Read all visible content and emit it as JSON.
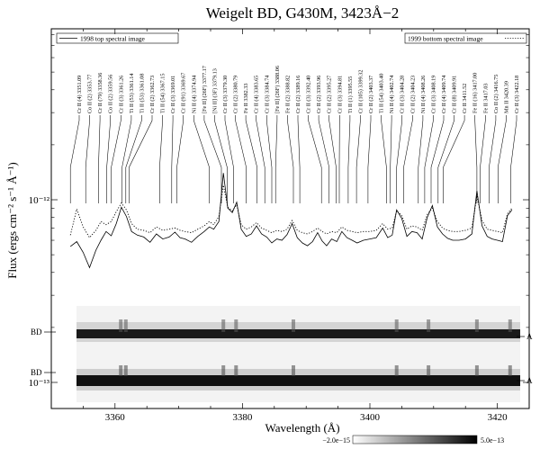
{
  "chart_data": {
    "type": "line",
    "title": "Weigelt BD, G430M, 3423Å−2",
    "xlabel": "Wavelength (Å)",
    "ylabel": "Flux (ergs cm⁻² s⁻¹ Å⁻¹)",
    "x_range": [
      3350,
      3425
    ],
    "y_scale": "log",
    "x_ticks": [
      "3360",
      "3380",
      "3400",
      "3420"
    ],
    "y_ticks": [
      "10⁻¹²",
      "10⁻¹³"
    ],
    "legend": {
      "left": "1998 top spectral image",
      "right": "1999 bottom spectral image"
    },
    "colorbar": {
      "min_label": "−2.0e−15",
      "max_label": "5.0e−13"
    },
    "image_labels": {
      "left": "BD",
      "right": "A"
    },
    "line_ids": [
      {
        "label": "Cr II (4) 3351.09",
        "x": 3353.0
      },
      {
        "label": "Co II (2) 3353.77",
        "x": 3355.4
      },
      {
        "label": "Cr II (79) 3358.36",
        "x": 3357.4
      },
      {
        "label": "Co II (2) 3359.56",
        "x": 3358.7
      },
      {
        "label": "Cr II (3) 3361.26",
        "x": 3359.4
      },
      {
        "label": "Ti II (53) 3361.14",
        "x": 3361.1
      },
      {
        "label": "Ti II (53) 3361.08",
        "x": 3361.7
      },
      {
        "label": "Cr II (2) 3362.73",
        "x": 3362.2
      },
      {
        "label": "Ti II (54) 3367.15",
        "x": 3367.0
      },
      {
        "label": "Cr II (3) 3369.01",
        "x": 3368.9
      },
      {
        "label": "Cr II (91) 3369.67",
        "x": 3369.7
      },
      {
        "label": "Ni II (4) 3374.94",
        "x": 3374.8
      },
      {
        "label": "[Fe II] (26F) 3377.17",
        "x": 3376.7
      },
      {
        "label": "[Ni II] (3F) 3379.13",
        "x": 3377.6
      },
      {
        "label": "Cr II (3) 3379.30",
        "x": 3378.6
      },
      {
        "label": "Cr II (2) 3380.79",
        "x": 3380.6
      },
      {
        "label": "Fe II 3382.33",
        "x": 3382.3
      },
      {
        "label": "Cr II (4) 3383.65",
        "x": 3383.5
      },
      {
        "label": "Cr II (3) 3384.74",
        "x": 3384.6
      },
      {
        "label": "[Fe II] (26F) 3388.06",
        "x": 3385.2
      },
      {
        "label": "Fe II (2) 3388.82",
        "x": 3388.0
      },
      {
        "label": "Cr II (2) 3389.16",
        "x": 3389.0
      },
      {
        "label": "Cr II (3) 3392.40",
        "x": 3392.4
      },
      {
        "label": "Cr II (2) 3393.96",
        "x": 3393.6
      },
      {
        "label": "Cr II (2) 3395.27",
        "x": 3394.7
      },
      {
        "label": "Cr II (3) 3394.81",
        "x": 3395.2
      },
      {
        "label": "Ti II (1) 3395.55",
        "x": 3396.6
      },
      {
        "label": "Cr II (105) 3399.32",
        "x": 3397.9
      },
      {
        "label": "Cr II (2) 3403.37",
        "x": 3399.7
      },
      {
        "label": "Ti II (54) 3403.40",
        "x": 3402.6
      },
      {
        "label": "Ni II (4) 3402.74",
        "x": 3403.2
      },
      {
        "label": "Cr II (3) 3404.28",
        "x": 3404.2
      },
      {
        "label": "Cr II (2) 3404.23",
        "x": 3405.3
      },
      {
        "label": "Ni II (4) 3408.26",
        "x": 3407.6
      },
      {
        "label": "Cr II (3) 3408.19",
        "x": 3408.6
      },
      {
        "label": "Cr II (4) 3409.74",
        "x": 3409.6
      },
      {
        "label": "Cr II (8) 3409.91",
        "x": 3410.7
      },
      {
        "label": "Cr II 3411.52",
        "x": 3411.5
      },
      {
        "label": "Fe II (16) 3417.00",
        "x": 3416.8
      },
      {
        "label": "Fe II 3417.03",
        "x": 3417.3
      },
      {
        "label": "Co II (2) 3416.75",
        "x": 3418.7
      },
      {
        "label": "Mn II 3420.39",
        "x": 3420.1
      },
      {
        "label": "Cr II (3) 3422.18",
        "x": 3422.1
      }
    ],
    "series": [
      {
        "name": "1998 top spectral image",
        "style": "solid",
        "x": [
          3353.0,
          3354.0,
          3355.0,
          3356.0,
          3357.0,
          3357.8,
          3358.6,
          3359.4,
          3360.2,
          3361.0,
          3361.8,
          3362.6,
          3363.5,
          3364.5,
          3365.5,
          3366.5,
          3367.5,
          3368.5,
          3369.4,
          3370.2,
          3371.0,
          3372.0,
          3373.0,
          3374.0,
          3374.8,
          3375.5,
          3376.3,
          3377.0,
          3377.7,
          3378.4,
          3379.1,
          3379.8,
          3380.6,
          3381.4,
          3382.2,
          3383.0,
          3383.8,
          3384.6,
          3385.4,
          3386.2,
          3387.0,
          3387.8,
          3388.6,
          3389.4,
          3390.2,
          3391.0,
          3391.8,
          3392.5,
          3393.2,
          3394.0,
          3394.8,
          3395.6,
          3396.4,
          3397.2,
          3398.0,
          3399.0,
          3400.0,
          3401.0,
          3402.0,
          3402.8,
          3403.5,
          3404.2,
          3405.0,
          3405.8,
          3406.6,
          3407.4,
          3408.2,
          3409.0,
          3409.8,
          3410.6,
          3411.4,
          3412.2,
          3413.0,
          3414.0,
          3415.0,
          3416.0,
          3416.8,
          3417.6,
          3418.4,
          3419.2,
          3420.0,
          3420.8,
          3421.6,
          3422.3
        ],
        "y": [
          5.55e-13,
          5.9e-13,
          5.15e-13,
          4.25e-13,
          5.3e-13,
          6e-13,
          6.7e-13,
          6.35e-13,
          7.4e-13,
          9.1e-13,
          8.1e-13,
          6.7e-13,
          6.4e-13,
          6.25e-13,
          5.85e-13,
          6.5e-13,
          6.1e-13,
          6.25e-13,
          6.65e-13,
          6.2e-13,
          6.1e-13,
          5.85e-13,
          6.3e-13,
          6.7e-13,
          7.1e-13,
          6.9e-13,
          7.6e-13,
          1.4e-12,
          9e-13,
          8.5e-13,
          9.7e-13,
          6.9e-13,
          6.3e-13,
          6.5e-13,
          7.2e-13,
          6.5e-13,
          6.25e-13,
          5.8e-13,
          6.1e-13,
          6e-13,
          6.45e-13,
          7.4e-13,
          6.2e-13,
          5.8e-13,
          5.6e-13,
          5.9e-13,
          6.6e-13,
          5.95e-13,
          5.6e-13,
          6.1e-13,
          5.9e-13,
          6.7e-13,
          6.2e-13,
          6e-13,
          5.8e-13,
          6e-13,
          6.1e-13,
          6.2e-13,
          7e-13,
          6.2e-13,
          6.4e-13,
          8.8e-13,
          7.9e-13,
          6.3e-13,
          6.7e-13,
          6.6e-13,
          6.1e-13,
          8e-13,
          9.3e-13,
          7.1e-13,
          6.5e-13,
          6.15e-13,
          6e-13,
          6e-13,
          6.1e-13,
          6.5e-13,
          1.12e-12,
          7.2e-13,
          6.3e-13,
          6.1e-13,
          6e-13,
          5.9e-13,
          8.2e-13,
          8.8e-13
        ]
      },
      {
        "name": "1999 bottom spectral image",
        "style": "dotted",
        "x": [
          3353.0,
          3354.0,
          3355.0,
          3356.0,
          3357.0,
          3357.8,
          3358.6,
          3359.4,
          3360.2,
          3361.0,
          3361.8,
          3362.6,
          3363.5,
          3364.5,
          3365.5,
          3366.5,
          3367.5,
          3368.5,
          3369.4,
          3370.2,
          3371.0,
          3372.0,
          3373.0,
          3374.0,
          3374.8,
          3375.5,
          3376.3,
          3377.0,
          3377.7,
          3378.4,
          3379.1,
          3379.8,
          3380.6,
          3381.4,
          3382.2,
          3383.0,
          3383.8,
          3384.6,
          3385.4,
          3386.2,
          3387.0,
          3387.8,
          3388.6,
          3389.4,
          3390.2,
          3391.0,
          3391.8,
          3392.5,
          3393.2,
          3394.0,
          3394.8,
          3395.6,
          3396.4,
          3397.2,
          3398.0,
          3399.0,
          3400.0,
          3401.0,
          3402.0,
          3402.8,
          3403.5,
          3404.2,
          3405.0,
          3405.8,
          3406.6,
          3407.4,
          3408.2,
          3409.0,
          3409.8,
          3410.6,
          3411.4,
          3412.2,
          3413.0,
          3414.0,
          3415.0,
          3416.0,
          3416.8,
          3417.6,
          3418.4,
          3419.2,
          3420.0,
          3420.8,
          3421.6,
          3422.3
        ],
        "y": [
          6.4e-13,
          8.9e-13,
          7.1e-13,
          6.2e-13,
          6.8e-13,
          7.6e-13,
          7.3e-13,
          7.6e-13,
          8.6e-13,
          9.6e-13,
          8.8e-13,
          7.4e-13,
          6.9e-13,
          6.8e-13,
          6.6e-13,
          7.1e-13,
          6.8e-13,
          6.9e-13,
          7e-13,
          6.8e-13,
          6.7e-13,
          6.6e-13,
          6.9e-13,
          7.2e-13,
          7.6e-13,
          7.3e-13,
          8.1e-13,
          1.2e-12,
          9.1e-13,
          8.7e-13,
          9.4e-13,
          7.3e-13,
          6.9e-13,
          7.1e-13,
          7.5e-13,
          7e-13,
          6.8e-13,
          6.6e-13,
          6.8e-13,
          6.7e-13,
          6.9e-13,
          7.7e-13,
          6.8e-13,
          6.6e-13,
          6.5e-13,
          6.7e-13,
          7e-13,
          6.7e-13,
          6.5e-13,
          6.7e-13,
          6.6e-13,
          7.1e-13,
          6.8e-13,
          6.7e-13,
          6.6e-13,
          6.7e-13,
          6.7e-13,
          6.8e-13,
          7.4e-13,
          6.9e-13,
          7e-13,
          8.7e-13,
          8.2e-13,
          6.9e-13,
          7.2e-13,
          7.1e-13,
          6.8e-13,
          8.3e-13,
          9e-13,
          7.6e-13,
          7e-13,
          6.8e-13,
          6.7e-13,
          6.7e-13,
          6.8e-13,
          7e-13,
          1.05e-12,
          7.7e-13,
          6.9e-13,
          6.8e-13,
          6.7e-13,
          6.6e-13,
          8.4e-13,
          9e-13
        ]
      }
    ]
  }
}
